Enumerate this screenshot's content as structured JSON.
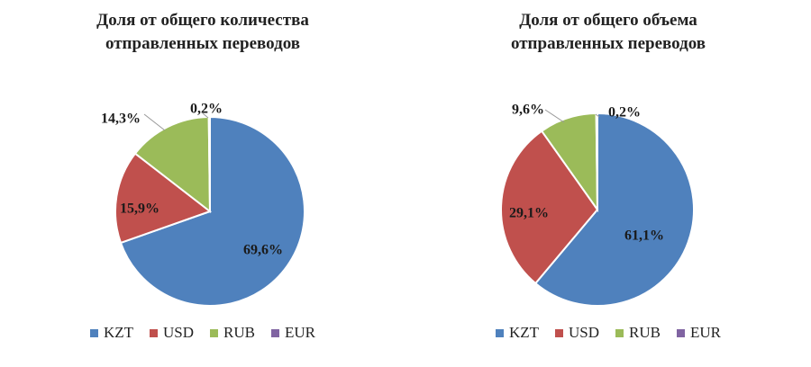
{
  "colors": {
    "KZT": "#4F81BD",
    "USD": "#C0504D",
    "RUB": "#9BBB59",
    "EUR": "#8064A2"
  },
  "chart_data": [
    {
      "type": "pie",
      "title_lines": [
        "Доля от общего количества",
        "отправленных переводов"
      ],
      "categories": [
        "KZT",
        "USD",
        "RUB",
        "EUR"
      ],
      "values": [
        69.6,
        15.9,
        14.3,
        0.2
      ],
      "labels": [
        "69,6%",
        "15,9%",
        "14,3%",
        "0,2%"
      ],
      "legend": [
        "KZT",
        "USD",
        "RUB",
        "EUR"
      ]
    },
    {
      "type": "pie",
      "title_lines": [
        "Доля от общего объема",
        "отправленных переводов"
      ],
      "categories": [
        "KZT",
        "USD",
        "RUB",
        "EUR"
      ],
      "values": [
        61.1,
        29.1,
        9.6,
        0.2
      ],
      "labels": [
        "61,1%",
        "29,1%",
        "9,6%",
        "0,2%"
      ],
      "legend": [
        "KZT",
        "USD",
        "RUB",
        "EUR"
      ]
    }
  ]
}
